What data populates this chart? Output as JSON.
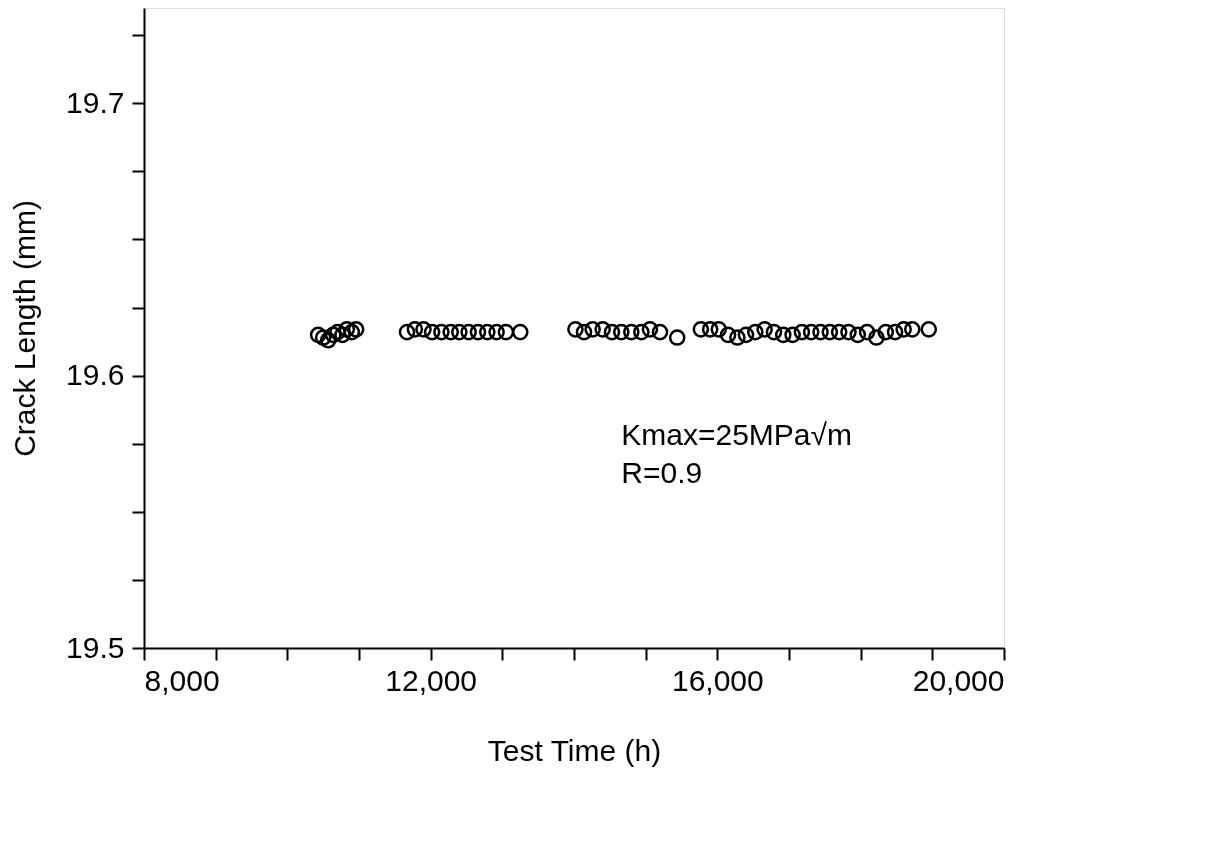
{
  "chart_data": {
    "type": "scatter",
    "xlabel": "Test Time (h)",
    "ylabel": "Crack Length (mm)",
    "x": [
      10430,
      10500,
      10570,
      10640,
      10700,
      10770,
      10830,
      10900,
      10960,
      11670,
      11780,
      11900,
      12020,
      12150,
      12280,
      12400,
      12530,
      12660,
      12790,
      12920,
      13050,
      13250,
      14020,
      14140,
      14260,
      14400,
      14530,
      14660,
      14800,
      14940,
      15060,
      15200,
      15440,
      15770,
      15900,
      16020,
      16150,
      16280,
      16400,
      16530,
      16660,
      16790,
      16920,
      17050,
      17180,
      17310,
      17440,
      17570,
      17700,
      17830,
      17960,
      18090,
      18220,
      18350,
      18480,
      18600,
      18720,
      18950
    ],
    "series": [
      {
        "color": "#000000",
        "values": [
          19.615,
          19.614,
          19.613,
          19.615,
          19.616,
          19.615,
          19.617,
          19.616,
          19.617,
          19.616,
          19.617,
          19.617,
          19.616,
          19.616,
          19.616,
          19.616,
          19.616,
          19.616,
          19.616,
          19.616,
          19.616,
          19.616,
          19.617,
          19.616,
          19.617,
          19.617,
          19.616,
          19.616,
          19.616,
          19.616,
          19.617,
          19.616,
          19.614,
          19.617,
          19.617,
          19.617,
          19.615,
          19.614,
          19.615,
          19.616,
          19.617,
          19.616,
          19.615,
          19.615,
          19.616,
          19.616,
          19.616,
          19.616,
          19.616,
          19.616,
          19.615,
          19.616,
          19.614,
          19.616,
          19.616,
          19.617,
          19.617,
          19.617
        ]
      }
    ],
    "marker": "circle",
    "xlim": [
      8000,
      20000
    ],
    "xticks": [
      {
        "value": 8000,
        "label": "8,000"
      },
      {
        "value": 9000,
        "label": null
      },
      {
        "value": 10000,
        "label": null
      },
      {
        "value": 11000,
        "label": null
      },
      {
        "value": 12000,
        "label": "12,000"
      },
      {
        "value": 13000,
        "label": null
      },
      {
        "value": 14000,
        "label": null
      },
      {
        "value": 15000,
        "label": null
      },
      {
        "value": 16000,
        "label": "16,000"
      },
      {
        "value": 17000,
        "label": null
      },
      {
        "value": 18000,
        "label": null
      },
      {
        "value": 19000,
        "label": null
      },
      {
        "value": 20000,
        "label": "20,000"
      }
    ],
    "ylim": [
      19.5,
      19.735
    ],
    "yticks": [
      19.5,
      {
        "value": 19.525,
        "label": null
      },
      {
        "value": 19.55,
        "label": null
      },
      {
        "value": 19.575,
        "label": null
      },
      19.6,
      {
        "value": 19.625,
        "label": null
      },
      {
        "value": 19.65,
        "label": null
      },
      {
        "value": 19.675,
        "label": null
      },
      19.7,
      {
        "value": 19.725,
        "label": null
      }
    ],
    "annotations": [
      "Kmax=25MPa√m",
      "R=0.9"
    ],
    "grid": false
  }
}
